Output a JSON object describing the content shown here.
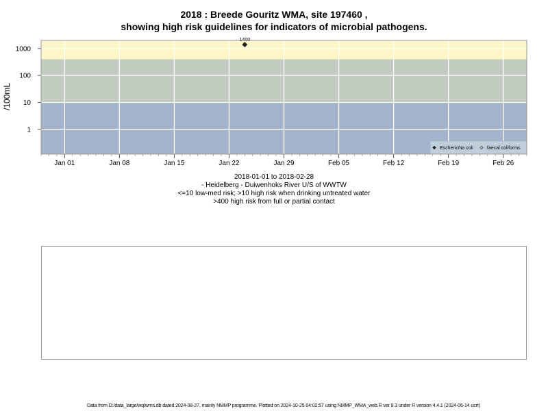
{
  "title": {
    "line1": "2018 : Breede Gouritz WMA, site 197460 ,",
    "line2": "showing high risk guidelines for indicators of microbial pathogens."
  },
  "chart_data": {
    "type": "scatter",
    "ylabel": "/100mL",
    "y_scale": "log",
    "ylim": [
      0.12,
      2000
    ],
    "y_ticks": [
      1,
      10,
      100,
      1000
    ],
    "y_tick_labels": [
      "1",
      "10",
      "100",
      "1000"
    ],
    "xlim": [
      "2017-12-29",
      "2018-03-01"
    ],
    "x_ticks": [
      "2018-01-01",
      "2018-01-08",
      "2018-01-15",
      "2018-01-22",
      "2018-01-29",
      "2018-02-05",
      "2018-02-12",
      "2018-02-19",
      "2018-02-26"
    ],
    "x_tick_labels": [
      "Jan 01",
      "Jan 08",
      "Jan 15",
      "Jan 22",
      "Jan 29",
      "Feb 05",
      "Feb 12",
      "Feb 19",
      "Feb 26"
    ],
    "risk_bands": [
      {
        "from": 0.12,
        "to": 10,
        "color": "#a3b3cb",
        "meaning": "<=10 low-med risk"
      },
      {
        "from": 10,
        "to": 400,
        "color": "#c3ccc0",
        "meaning": ">10 high risk when drinking untreated water"
      },
      {
        "from": 400,
        "to": 2000,
        "color": "#fcf6c9",
        "meaning": ">400 high risk from full or partial contact"
      }
    ],
    "grid": true,
    "legend_position": "bottom-right",
    "series": [
      {
        "name": "Escherichia coli",
        "marker": "filled-diamond",
        "color": "#222222",
        "points": [
          {
            "x": "2018-01-24",
            "y": 1400,
            "label": "1400"
          }
        ]
      },
      {
        "name": "faecal coliforms",
        "marker": "open-diamond",
        "color": "#444444",
        "points": []
      }
    ]
  },
  "captions": {
    "date_range": "2018-01-01 to 2018-02-28",
    "site": "- Heidelberg - Duiwenhoks River U/S of WWTW",
    "guideline_1": "<=10 low-med risk; >10 high risk when drinking untreated water",
    "guideline_2": ">400 high risk from full or partial contact"
  },
  "footer": "Data from D:/data_large/wq/wms.db dated 2024-08-27, mainly NMMP programme. Plotted on 2024-10-25 04:02:57 using NMMP_WMA_web.R ver 9.3 under R version 4.4.1 (2024-06-14 ucrt)"
}
